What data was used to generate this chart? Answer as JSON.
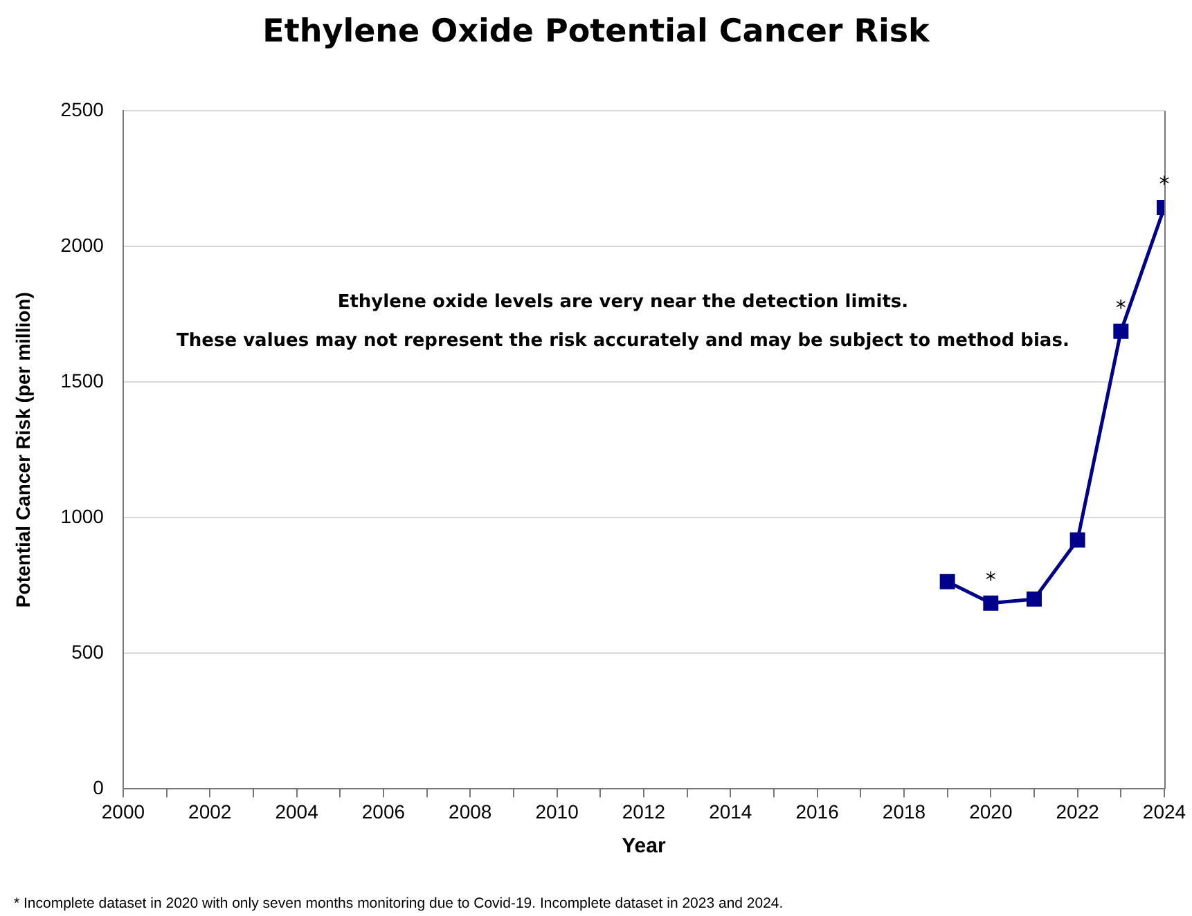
{
  "chart_data": {
    "type": "line",
    "title": "Ethylene Oxide Potential Cancer Risk",
    "xlabel": "Year",
    "ylabel": "Potential Cancer Risk (per million)",
    "x": [
      2019,
      2020,
      2021,
      2022,
      2023,
      2024
    ],
    "series": [
      {
        "color": "#00008b",
        "values": [
          764,
          685,
          700,
          918,
          1687,
          2143
        ]
      }
    ],
    "xlim": [
      2000,
      2024
    ],
    "xticks": [
      2000,
      {
        "value": 2001,
        "label": null
      },
      2002,
      {
        "value": 2003,
        "label": null
      },
      2004,
      {
        "value": 2005,
        "label": null
      },
      2006,
      {
        "value": 2007,
        "label": null
      },
      2008,
      {
        "value": 2009,
        "label": null
      },
      2010,
      {
        "value": 2011,
        "label": null
      },
      2012,
      {
        "value": 2013,
        "label": null
      },
      2014,
      {
        "value": 2015,
        "label": null
      },
      2016,
      {
        "value": 2017,
        "label": null
      },
      2018,
      {
        "value": 2019,
        "label": null
      },
      2020,
      {
        "value": 2021,
        "label": null
      },
      2022,
      {
        "value": 2023,
        "label": null
      },
      2024
    ],
    "ylim": [
      0,
      2500
    ],
    "yticks": [
      0,
      500,
      1000,
      1500,
      2000,
      2500
    ],
    "grid": "y",
    "legend": false,
    "marker": "square",
    "line_style": "solid",
    "annotations": [
      {
        "text": "*",
        "x": 2020,
        "y": 685
      },
      {
        "text": "*",
        "x": 2023,
        "y": 1687
      },
      {
        "text": "*",
        "x": 2024,
        "y": 2143
      },
      "Ethylene oxide levels are very near the detection limits.",
      "These values may not represent the risk accurately and may be subject to method bias.",
      "* Incomplete dataset in 2020 with only seven months monitoring due to Covid-19. Incomplete dataset in 2023 and 2024."
    ]
  }
}
